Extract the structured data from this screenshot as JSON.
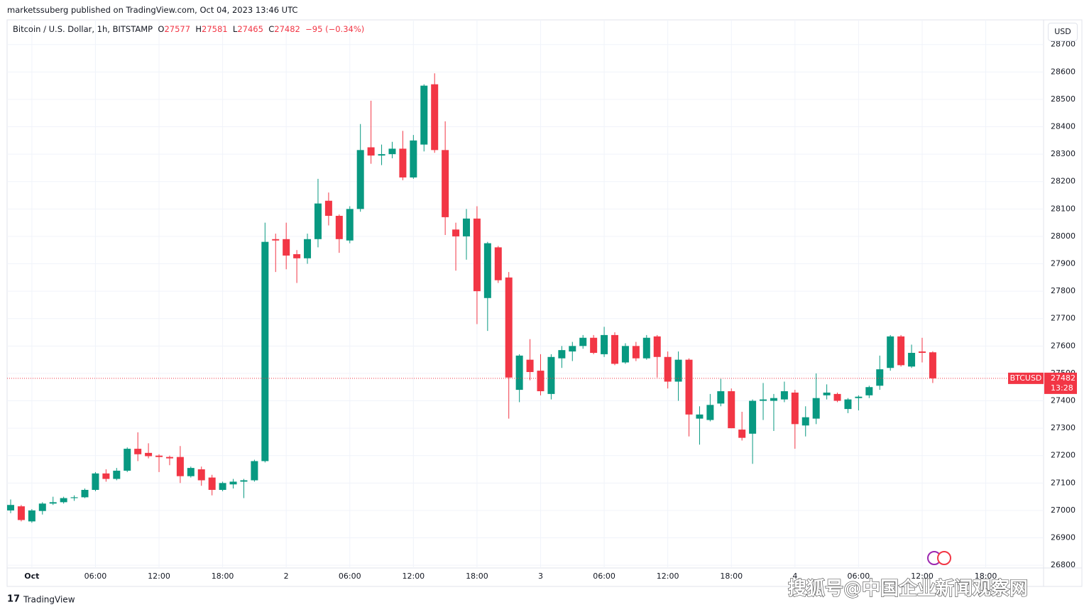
{
  "header": {
    "publisher": "marketssuberg published on TradingView.com, Oct 04, 2023 13:46 UTC",
    "symbol": "Bitcoin / U.S. Dollar, 1h, BITSTAMP",
    "o": "O",
    "h": "H",
    "l": "L",
    "c": "C",
    "change": "−95 (−0.34%)",
    "currency": "USD",
    "ticker": "BTCUSD",
    "countdown": "13:28",
    "brand": "TradingView",
    "watermark": "搜狐号@中国企业新闻观察网"
  },
  "chart_data": {
    "type": "candlestick",
    "up_color": "#089981",
    "down_color": "#f23645",
    "grid": true,
    "categories": [
      null,
      null,
      "Oct",
      null,
      null,
      null,
      null,
      null,
      "06:00",
      null,
      null,
      null,
      null,
      null,
      "12:00",
      null,
      null,
      null,
      null,
      null,
      "18:00",
      null,
      null,
      null,
      null,
      null,
      "2",
      null,
      null,
      null,
      null,
      null,
      "06:00",
      null,
      null,
      null,
      null,
      null,
      "12:00",
      null,
      null,
      null,
      null,
      null,
      "18:00",
      null,
      null,
      null,
      null,
      null,
      "3",
      null,
      null,
      null,
      null,
      null,
      "06:00",
      null,
      null,
      null,
      null,
      null,
      "12:00",
      null,
      null,
      null,
      null,
      null,
      "18:00",
      null,
      null,
      null,
      null,
      null,
      "4",
      null,
      null,
      null,
      null,
      null,
      "06:00",
      null,
      null,
      null,
      null,
      null,
      "12:00",
      null,
      null,
      null,
      null,
      null,
      "18:00",
      null,
      null,
      null,
      null,
      null
    ],
    "open": [
      27000,
      27015,
      26960,
      26998,
      27025,
      27030,
      27045,
      27048,
      27075,
      27135,
      27115,
      27145,
      27225,
      27210,
      27200,
      27195,
      27195,
      27125,
      27150,
      27120,
      27075,
      27095,
      27105,
      27110,
      27180,
      27990,
      27990,
      27935,
      27920,
      27990,
      28130,
      28075,
      27985,
      28100,
      28325,
      28295,
      28300,
      28320,
      28215,
      28335,
      28555,
      28315,
      28025,
      28000,
      28065,
      27775,
      27960,
      27850,
      27440,
      27550,
      27510,
      27425,
      27555,
      27580,
      27600,
      27630,
      27570,
      27640,
      27540,
      27600,
      27555,
      27635,
      27560,
      27470,
      27550,
      27335,
      27330,
      27390,
      27435,
      27295,
      27280,
      27400,
      27400,
      27405,
      27430,
      27310,
      27335,
      27420,
      27425,
      27370,
      27410,
      27420,
      27455,
      27520,
      27635,
      27525,
      27580,
      27577,
      null,
      null,
      null,
      null,
      null,
      null,
      null,
      null,
      null,
      null
    ],
    "high": [
      27040,
      27020,
      27005,
      27030,
      27050,
      27050,
      27055,
      27080,
      27140,
      27150,
      27155,
      27230,
      27285,
      27245,
      27205,
      27200,
      27235,
      27160,
      27160,
      27130,
      27105,
      27115,
      27115,
      27185,
      28050,
      28010,
      28050,
      27950,
      28010,
      28210,
      28160,
      28080,
      28110,
      28410,
      28495,
      28335,
      28345,
      28385,
      28370,
      28555,
      28595,
      28420,
      28050,
      28100,
      28110,
      27980,
      27965,
      27870,
      27570,
      27625,
      27570,
      27570,
      27600,
      27615,
      27640,
      27640,
      27670,
      27650,
      27610,
      27615,
      27640,
      27640,
      27580,
      27580,
      27555,
      27380,
      27425,
      27480,
      27445,
      27360,
      27405,
      27465,
      27425,
      27470,
      27440,
      27380,
      27500,
      27460,
      27430,
      27410,
      27420,
      27455,
      27565,
      27640,
      27640,
      27605,
      27630,
      27581,
      null,
      null,
      null,
      null,
      null,
      null,
      null,
      null,
      null,
      null
    ],
    "low": [
      26990,
      26960,
      26955,
      26985,
      27020,
      27025,
      27035,
      27045,
      27070,
      27105,
      27110,
      27140,
      27180,
      27190,
      27140,
      27165,
      27100,
      27120,
      27090,
      27055,
      27070,
      27080,
      27045,
      27105,
      27175,
      27870,
      27880,
      27830,
      27900,
      27960,
      28040,
      27940,
      27975,
      28090,
      28265,
      28260,
      28285,
      28205,
      28210,
      28310,
      28305,
      28005,
      27875,
      27915,
      27680,
      27655,
      27830,
      27335,
      27395,
      27475,
      27420,
      27405,
      27520,
      27545,
      27590,
      27570,
      27560,
      27530,
      27535,
      27545,
      27550,
      27485,
      27445,
      27400,
      27270,
      27240,
      27325,
      27380,
      27300,
      27255,
      27170,
      27330,
      27290,
      27395,
      27225,
      27270,
      27315,
      27405,
      27395,
      27355,
      27365,
      27410,
      27440,
      27510,
      27525,
      27520,
      27540,
      27465,
      null,
      null,
      null,
      null,
      null,
      null,
      null,
      null,
      null,
      null
    ],
    "close": [
      27020,
      26965,
      27000,
      27025,
      27030,
      27045,
      27048,
      27075,
      27135,
      27115,
      27145,
      27225,
      27205,
      27198,
      27195,
      27190,
      27125,
      27155,
      27110,
      27075,
      27100,
      27105,
      27110,
      27180,
      27980,
      27985,
      27930,
      27920,
      27990,
      28120,
      28075,
      27990,
      28100,
      28315,
      28295,
      28300,
      28320,
      28215,
      28350,
      28550,
      28315,
      28070,
      28000,
      28065,
      27800,
      27975,
      27840,
      27485,
      27565,
      27505,
      27435,
      27560,
      27585,
      27600,
      27630,
      27575,
      27640,
      27535,
      27600,
      27555,
      27630,
      27560,
      27470,
      27550,
      27350,
      27350,
      27385,
      27435,
      27300,
      27265,
      27400,
      27405,
      27410,
      27435,
      27315,
      27340,
      27410,
      27430,
      27400,
      27405,
      27415,
      27450,
      27515,
      27635,
      27530,
      27575,
      27575,
      27482,
      null,
      null,
      null,
      null,
      null,
      null,
      null,
      null,
      null,
      null
    ],
    "ylim": [
      26790,
      28790
    ],
    "yticks": [
      26800,
      26900,
      27000,
      27100,
      27200,
      27300,
      27400,
      27500,
      27600,
      27700,
      27800,
      27900,
      28000,
      28100,
      28200,
      28300,
      28400,
      28500,
      28600,
      28700
    ]
  }
}
